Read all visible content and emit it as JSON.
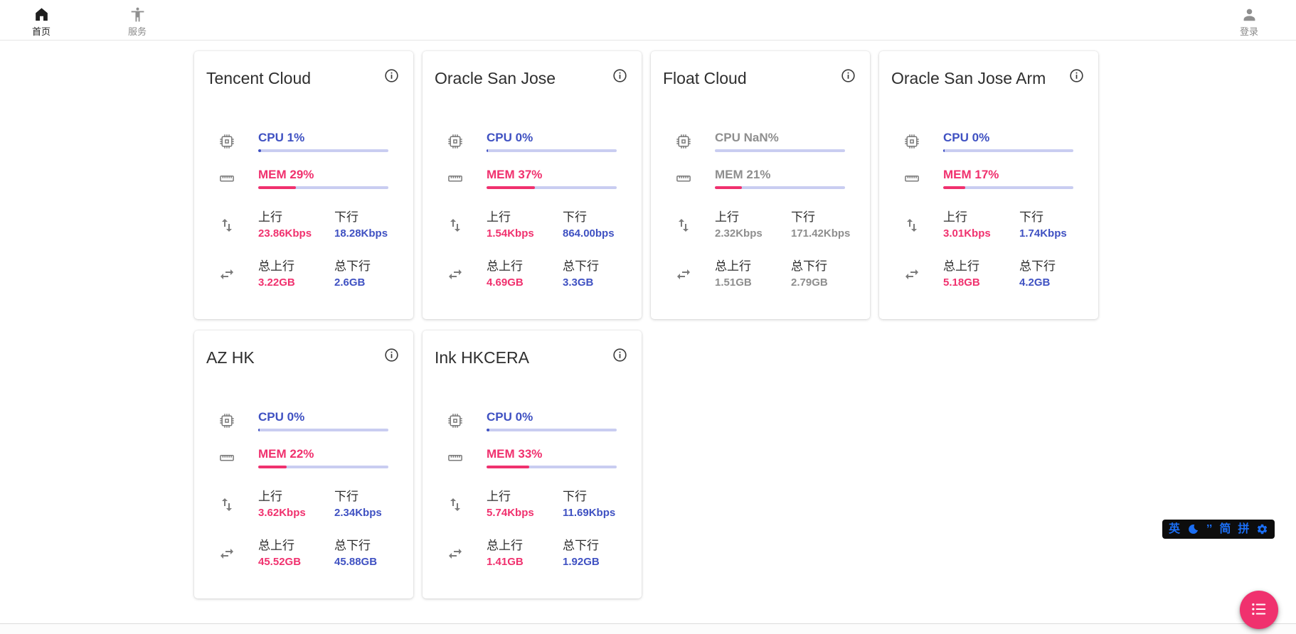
{
  "nav": {
    "home": "首页",
    "services": "服务",
    "login": "登录"
  },
  "labels": {
    "up": "上行",
    "down": "下行",
    "total_up": "总上行",
    "total_down": "总下行"
  },
  "colors": {
    "blue": "#3f51c2",
    "pink": "#f0316e",
    "track": "#c9cdf1",
    "muted_gray": "#8e8e8e",
    "ime_blue": "#1b6ef3"
  },
  "servers": [
    {
      "name": "Tencent Cloud",
      "cpu_label": "CPU 1%",
      "cpu_bar_pct": 2,
      "mem_label": "MEM 29%",
      "mem_pct": 29,
      "up": "23.86Kbps",
      "down": "18.28Kbps",
      "total_up": "3.22GB",
      "total_down": "2.6GB",
      "muted": false
    },
    {
      "name": "Oracle San Jose",
      "cpu_label": "CPU 0%",
      "cpu_bar_pct": 1,
      "mem_label": "MEM 37%",
      "mem_pct": 37,
      "up": "1.54Kbps",
      "down": "864.00bps",
      "total_up": "4.69GB",
      "total_down": "3.3GB",
      "muted": false
    },
    {
      "name": "Float Cloud",
      "cpu_label": "CPU NaN%",
      "cpu_bar_pct": 0,
      "mem_label": "MEM 21%",
      "mem_pct": 21,
      "up": "2.32Kbps",
      "down": "171.42Kbps",
      "total_up": "1.51GB",
      "total_down": "2.79GB",
      "muted": true
    },
    {
      "name": "Oracle San Jose Arm",
      "cpu_label": "CPU 0%",
      "cpu_bar_pct": 1,
      "mem_label": "MEM 17%",
      "mem_pct": 17,
      "up": "3.01Kbps",
      "down": "1.74Kbps",
      "total_up": "5.18GB",
      "total_down": "4.2GB",
      "muted": false
    },
    {
      "name": "AZ HK",
      "cpu_label": "CPU 0%",
      "cpu_bar_pct": 1,
      "mem_label": "MEM 22%",
      "mem_pct": 22,
      "up": "3.62Kbps",
      "down": "2.34Kbps",
      "total_up": "45.52GB",
      "total_down": "45.88GB",
      "muted": false
    },
    {
      "name": "Ink HKCERA",
      "cpu_label": "CPU 0%",
      "cpu_bar_pct": 2,
      "mem_label": "MEM 33%",
      "mem_pct": 33,
      "up": "5.74Kbps",
      "down": "11.69Kbps",
      "total_up": "1.41GB",
      "total_down": "1.92GB",
      "muted": false
    }
  ],
  "ime": {
    "lang": "英",
    "punct": "’’",
    "simplified": "简",
    "pinyin": "拼"
  }
}
